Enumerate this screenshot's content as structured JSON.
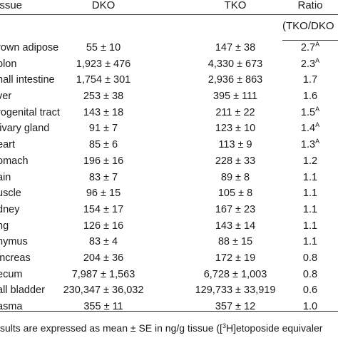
{
  "header": {
    "tissue": "issue",
    "dko": "DKO",
    "tko": "TKO",
    "ratio": "Ratio",
    "ratio_sub": "(TKO/DKO"
  },
  "rows": [
    {
      "tissue": "rown adipose",
      "dko": "55 ± 10",
      "tko": "147 ± 38",
      "ratio": "2.7",
      "mark": "A"
    },
    {
      "tissue": "olon",
      "dko": "1,923 ± 476",
      "tko": "4,330 ± 673",
      "ratio": "2.3",
      "mark": "A"
    },
    {
      "tissue": "nall intestine",
      "dko": "1,754 ± 301",
      "tko": "2,936 ± 863",
      "ratio": "1.7",
      "mark": ""
    },
    {
      "tissue": "ver",
      "dko": "253 ± 38",
      "tko": "395 ± 111",
      "ratio": "1.6",
      "mark": ""
    },
    {
      "tissue": "rogenital tract",
      "dko": "143 ± 18",
      "tko": "211 ± 22",
      "ratio": "1.5",
      "mark": "A"
    },
    {
      "tissue": "livary gland",
      "dko": "91 ± 7",
      "tko": "123 ± 10",
      "ratio": "1.4",
      "mark": "A"
    },
    {
      "tissue": "eart",
      "dko": "85 ± 6",
      "tko": "113 ± 9",
      "ratio": "1.3",
      "mark": "A"
    },
    {
      "tissue": "omach",
      "dko": "196 ± 16",
      "tko": "228 ± 33",
      "ratio": "1.2",
      "mark": ""
    },
    {
      "tissue": "ain",
      "dko": "83 ± 7",
      "tko": "89 ± 8",
      "ratio": "1.1",
      "mark": ""
    },
    {
      "tissue": "uscle",
      "dko": "96 ± 15",
      "tko": "105 ± 8",
      "ratio": "1.1",
      "mark": ""
    },
    {
      "tissue": "dney",
      "dko": "154 ± 17",
      "tko": "167 ± 23",
      "ratio": "1.1",
      "mark": ""
    },
    {
      "tissue": "ng",
      "dko": "126 ± 16",
      "tko": "143 ± 14",
      "ratio": "1.1",
      "mark": ""
    },
    {
      "tissue": "hymus",
      "dko": "83 ± 4",
      "tko": "88 ± 15",
      "ratio": "1.1",
      "mark": ""
    },
    {
      "tissue": "increas",
      "dko": "204 ± 36",
      "tko": "172 ± 19",
      "ratio": "0.8",
      "mark": ""
    },
    {
      "tissue": "ecum",
      "dko": "7,987 ± 1,563",
      "tko": "6,728 ± 1,003",
      "ratio": "0.8",
      "mark": ""
    },
    {
      "tissue": "all bladder",
      "dko": "230,347 ± 36,032",
      "tko": "129,733 ± 33,919",
      "ratio": "0.6",
      "mark": ""
    },
    {
      "tissue": "asma",
      "dko": "355 ± 11",
      "tko": "357 ± 12",
      "ratio": "1.0",
      "mark": ""
    }
  ],
  "footnote": {
    "before": "sults are expressed as mean ± SE in ng/g tissue ([",
    "sup": "3",
    "after": "H]etoposide equivaler"
  }
}
